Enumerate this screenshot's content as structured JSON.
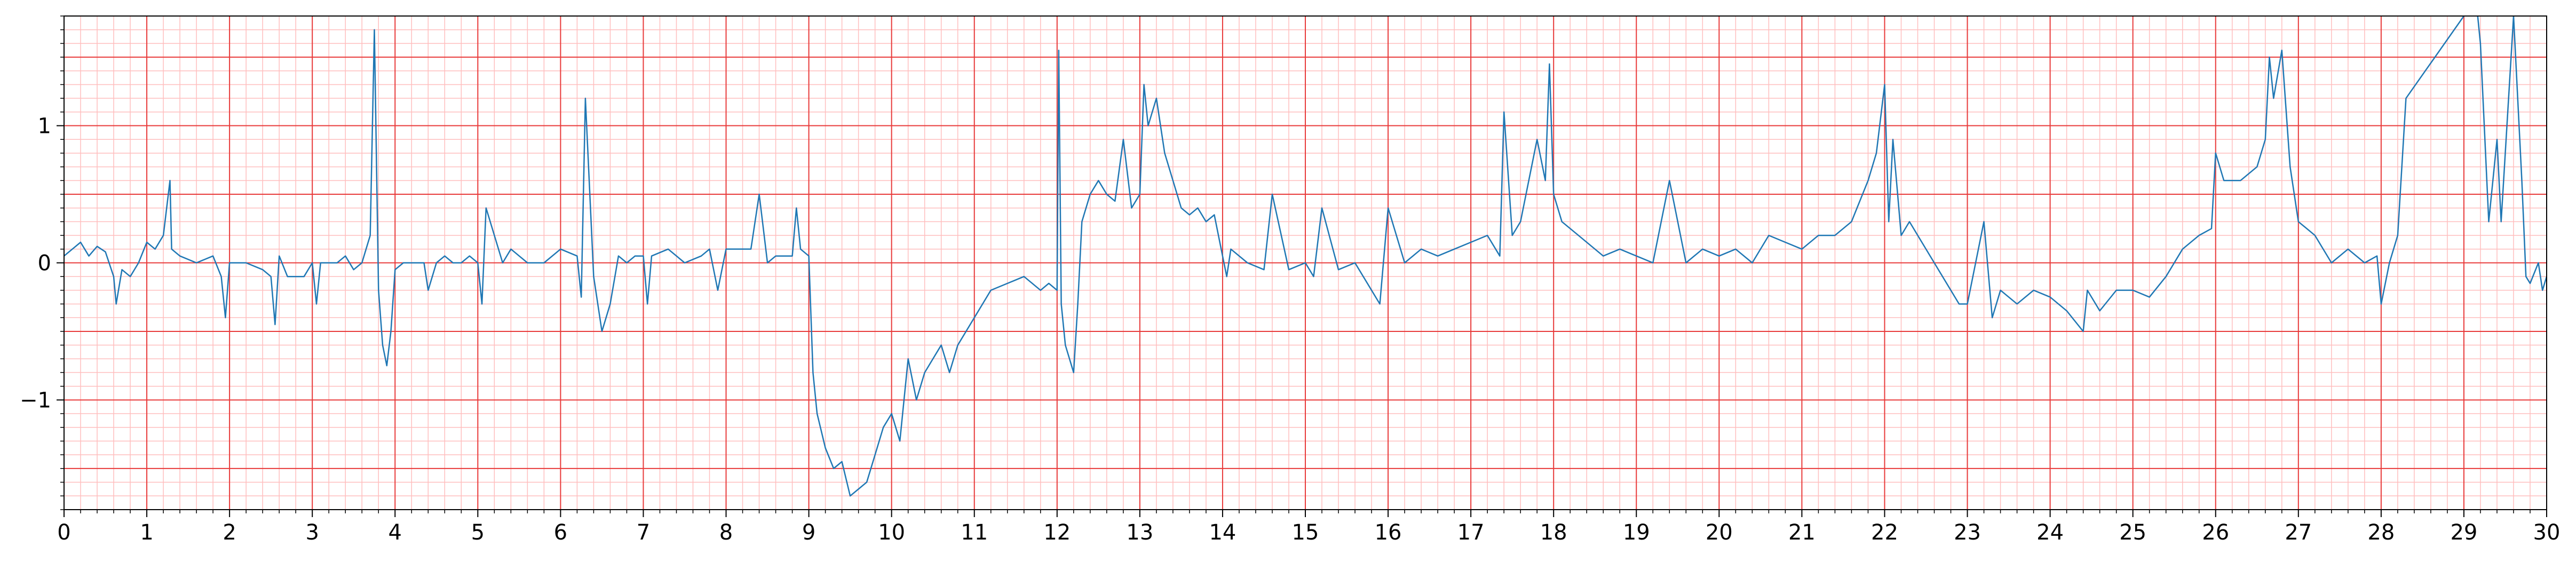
{
  "chart_data": {
    "type": "line",
    "title": "",
    "xlabel": "",
    "ylabel": "",
    "xlim": [
      0,
      30
    ],
    "ylim": [
      -1.8,
      1.8
    ],
    "grid": "ECG-style red grid: major every 1 s (x) and 0.5 (y), minor every 0.2 s (x) and 0.1 (y)",
    "x_ticks": [
      0,
      1,
      2,
      3,
      4,
      5,
      6,
      7,
      8,
      9,
      10,
      11,
      12,
      13,
      14,
      15,
      16,
      17,
      18,
      19,
      20,
      21,
      22,
      23,
      24,
      25,
      26,
      27,
      28,
      29,
      30
    ],
    "x_tick_labels": [
      "0",
      "1",
      "2",
      "3",
      "4",
      "5",
      "6",
      "7",
      "8",
      "9",
      "10",
      "11",
      "12",
      "13",
      "14",
      "15",
      "16",
      "17",
      "18",
      "19",
      "20",
      "21",
      "22",
      "23",
      "24",
      "25",
      "26",
      "27",
      "28",
      "29",
      "30"
    ],
    "y_ticks": [
      -1,
      0,
      1
    ],
    "y_tick_labels": [
      "−1",
      "0",
      "1"
    ],
    "series": [
      {
        "color": "#1f77b4",
        "x": [
          0,
          0.1,
          0.2,
          0.3,
          0.4,
          0.5,
          0.6,
          0.63,
          0.7,
          0.8,
          0.9,
          1.0,
          1.1,
          1.2,
          1.28,
          1.3,
          1.4,
          1.6,
          1.8,
          1.9,
          1.95,
          2.0,
          2.2,
          2.4,
          2.5,
          2.55,
          2.6,
          2.7,
          2.9,
          3.0,
          3.05,
          3.1,
          3.3,
          3.4,
          3.5,
          3.6,
          3.7,
          3.75,
          3.8,
          3.85,
          3.9,
          3.95,
          4.0,
          4.1,
          4.2,
          4.35,
          4.4,
          4.5,
          4.6,
          4.7,
          4.8,
          4.9,
          5.0,
          5.05,
          5.1,
          5.3,
          5.4,
          5.5,
          5.6,
          5.8,
          6.0,
          6.2,
          6.25,
          6.3,
          6.4,
          6.5,
          6.6,
          6.7,
          6.8,
          6.9,
          7.0,
          7.05,
          7.1,
          7.3,
          7.5,
          7.7,
          7.8,
          7.9,
          8.0,
          8.2,
          8.3,
          8.4,
          8.5,
          8.6,
          8.8,
          8.85,
          8.9,
          9.0,
          9.05,
          9.1,
          9.2,
          9.3,
          9.4,
          9.5,
          9.6,
          9.7,
          9.8,
          9.9,
          10.0,
          10.1,
          10.2,
          10.3,
          10.4,
          10.5,
          10.6,
          10.7,
          10.8,
          10.9,
          11.0,
          11.1,
          11.2,
          11.4,
          11.6,
          11.8,
          11.9,
          12.0,
          12.02,
          12.05,
          12.1,
          12.2,
          12.25,
          12.3,
          12.4,
          12.5,
          12.6,
          12.7,
          12.8,
          12.9,
          13.0,
          13.05,
          13.1,
          13.2,
          13.3,
          13.4,
          13.5,
          13.6,
          13.7,
          13.8,
          13.9,
          14.0,
          14.05,
          14.1,
          14.3,
          14.5,
          14.6,
          14.8,
          15.0,
          15.1,
          15.2,
          15.4,
          15.6,
          15.9,
          16.0,
          16.2,
          16.4,
          16.6,
          16.8,
          17.0,
          17.2,
          17.35,
          17.4,
          17.5,
          17.6,
          17.7,
          17.8,
          17.9,
          17.95,
          18.0,
          18.1,
          18.3,
          18.6,
          18.8,
          19.0,
          19.2,
          19.4,
          19.6,
          19.8,
          20.0,
          20.2,
          20.4,
          20.6,
          20.8,
          21.0,
          21.2,
          21.4,
          21.6,
          21.8,
          21.9,
          22.0,
          22.05,
          22.1,
          22.2,
          22.3,
          22.4,
          22.6,
          22.8,
          22.9,
          23.0,
          23.2,
          23.3,
          23.4,
          23.6,
          23.8,
          24.0,
          24.2,
          24.4,
          24.45,
          24.6,
          24.8,
          25.0,
          25.2,
          25.4,
          25.6,
          25.8,
          25.95,
          26.0,
          26.1,
          26.3,
          26.5,
          26.6,
          26.65,
          26.7,
          26.8,
          26.9,
          27.0,
          27.2,
          27.4,
          27.6,
          27.8,
          27.95,
          28.0,
          28.1,
          28.2,
          28.3,
          29.0,
          29.1,
          29.15,
          29.2,
          29.3,
          29.4,
          29.45,
          29.6,
          29.7,
          29.75,
          29.8,
          29.9,
          29.95,
          30.0
        ],
        "y": [
          0.05,
          0.1,
          0.15,
          0.05,
          0.12,
          0.08,
          -0.1,
          -0.3,
          -0.05,
          -0.1,
          0.0,
          0.15,
          0.1,
          0.2,
          0.6,
          0.1,
          0.05,
          0.0,
          0.05,
          -0.1,
          -0.4,
          0.0,
          0.0,
          -0.05,
          -0.1,
          -0.45,
          0.05,
          -0.1,
          -0.1,
          0.0,
          -0.3,
          0.0,
          0.0,
          0.05,
          -0.05,
          0.0,
          0.2,
          1.7,
          -0.2,
          -0.6,
          -0.75,
          -0.5,
          -0.05,
          0.0,
          0.0,
          0.0,
          -0.2,
          0.0,
          0.05,
          0.0,
          0.0,
          0.05,
          0.0,
          -0.3,
          0.4,
          0.0,
          0.1,
          0.05,
          0.0,
          0.0,
          0.1,
          0.05,
          -0.25,
          1.2,
          -0.1,
          -0.5,
          -0.3,
          0.05,
          0.0,
          0.05,
          0.05,
          -0.3,
          0.05,
          0.1,
          0.0,
          0.05,
          0.1,
          -0.2,
          0.1,
          0.1,
          0.1,
          0.5,
          0.0,
          0.05,
          0.05,
          0.4,
          0.1,
          0.05,
          -0.8,
          -1.1,
          -1.35,
          -1.5,
          -1.45,
          -1.7,
          -1.65,
          -1.6,
          -1.4,
          -1.2,
          -1.1,
          -1.3,
          -0.7,
          -1.0,
          -0.8,
          -0.7,
          -0.6,
          -0.8,
          -0.6,
          -0.5,
          -0.4,
          -0.3,
          -0.2,
          -0.15,
          -0.1,
          -0.2,
          -0.15,
          -0.2,
          1.55,
          -0.3,
          -0.6,
          -0.8,
          -0.3,
          0.3,
          0.5,
          0.6,
          0.5,
          0.45,
          0.9,
          0.4,
          0.5,
          1.3,
          1.0,
          1.2,
          0.8,
          0.6,
          0.4,
          0.35,
          0.4,
          0.3,
          0.35,
          0.05,
          -0.1,
          0.1,
          0.0,
          -0.05,
          0.5,
          -0.05,
          0.0,
          -0.1,
          0.4,
          -0.05,
          0.0,
          -0.3,
          0.4,
          0.0,
          0.1,
          0.05,
          0.1,
          0.15,
          0.2,
          0.05,
          1.1,
          0.2,
          0.3,
          0.6,
          0.9,
          0.6,
          1.45,
          0.5,
          0.3,
          0.2,
          0.05,
          0.1,
          0.05,
          0.0,
          0.6,
          0.0,
          0.1,
          0.05,
          0.1,
          0.0,
          0.2,
          0.15,
          0.1,
          0.2,
          0.2,
          0.3,
          0.6,
          0.8,
          1.3,
          0.3,
          0.9,
          0.2,
          0.3,
          0.2,
          0.0,
          -0.2,
          -0.3,
          -0.3,
          0.3,
          -0.4,
          -0.2,
          -0.3,
          -0.2,
          -0.25,
          -0.35,
          -0.5,
          -0.2,
          -0.35,
          -0.2,
          -0.2,
          -0.25,
          -0.1,
          0.1,
          0.2,
          0.25,
          0.8,
          0.6,
          0.6,
          0.7,
          0.9,
          1.5,
          1.2,
          1.55,
          0.7,
          0.3,
          0.2,
          0.0,
          0.1,
          0.0,
          0.05,
          -0.3,
          0.0,
          0.2,
          1.2,
          1.8,
          1.9,
          1.9,
          1.6,
          0.3,
          0.9,
          0.3,
          1.8,
          0.6,
          -0.1,
          -0.15,
          0.0,
          -0.2,
          -0.1
        ]
      }
    ]
  }
}
